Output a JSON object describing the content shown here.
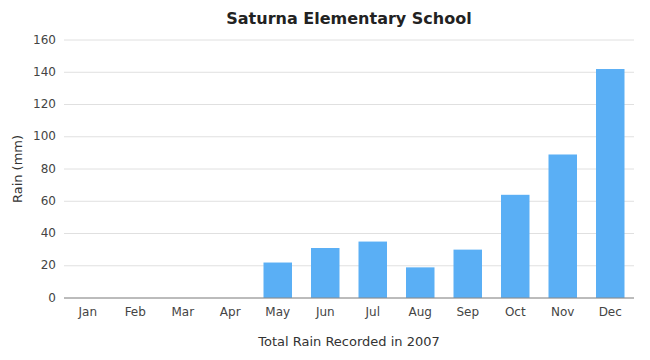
{
  "chart_data": {
    "type": "bar",
    "title": "Saturna Elementary School",
    "xlabel": "Total Rain Recorded in 2007",
    "ylabel": "Rain (mm)",
    "categories": [
      "Jan",
      "Feb",
      "Mar",
      "Apr",
      "May",
      "Jun",
      "Jul",
      "Aug",
      "Sep",
      "Oct",
      "Nov",
      "Dec"
    ],
    "values": [
      0,
      0,
      0,
      0,
      22,
      31,
      35,
      19,
      30,
      64,
      89,
      142
    ],
    "color": "#5aaff5",
    "ylim": [
      0,
      160
    ],
    "yticks": [
      0,
      20,
      40,
      60,
      80,
      100,
      120,
      140,
      160
    ],
    "grid": true
  }
}
